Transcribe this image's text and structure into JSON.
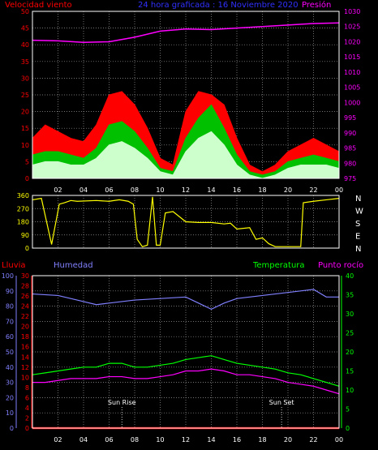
{
  "chart_data": [
    {
      "type": "line",
      "title": "24 hora graficada : 16 Noviembre 2020",
      "left_label": "Velocidad viento",
      "right_label": "Presión",
      "x_ticks": [
        "02",
        "04",
        "06",
        "08",
        "10",
        "12",
        "14",
        "16",
        "18",
        "20",
        "22",
        "00"
      ],
      "y_left_ticks": [
        "0",
        "5",
        "10",
        "15",
        "20",
        "25",
        "30",
        "35",
        "40",
        "45",
        "50"
      ],
      "y_left_range": [
        0,
        50
      ],
      "y_right_ticks": [
        "975",
        "980",
        "985",
        "990",
        "995",
        "1000",
        "1005",
        "1010",
        "1015",
        "1020",
        "1025",
        "1030"
      ],
      "y_right_range": [
        975,
        1030
      ],
      "grid": true,
      "colors": {
        "gust": "#ff0000",
        "wind_avg": "#00c000",
        "wind_speed": "#ccffcc",
        "pressure": "#ff00ff"
      },
      "series": [
        {
          "name": "gust",
          "x": [
            0,
            1,
            2,
            3,
            4,
            5,
            6,
            7,
            8,
            9,
            10,
            11,
            12,
            13,
            14,
            15,
            16,
            17,
            18,
            19,
            20,
            21,
            22,
            23,
            24
          ],
          "values": [
            12,
            16,
            14,
            12,
            11,
            16,
            25,
            26,
            22,
            15,
            6,
            4,
            20,
            26,
            25,
            22,
            12,
            4,
            2,
            4,
            8,
            10,
            12,
            10,
            8
          ]
        },
        {
          "name": "wind_avg",
          "x": [
            0,
            1,
            2,
            3,
            4,
            5,
            6,
            7,
            8,
            9,
            10,
            11,
            12,
            13,
            14,
            15,
            16,
            17,
            18,
            19,
            20,
            21,
            22,
            23,
            24
          ],
          "values": [
            7,
            8,
            8,
            7,
            6,
            9,
            16,
            17,
            14,
            9,
            3,
            2,
            12,
            18,
            22,
            15,
            7,
            2,
            1,
            2,
            5,
            6,
            7,
            6,
            5
          ]
        },
        {
          "name": "wind_speed",
          "x": [
            0,
            1,
            2,
            3,
            4,
            5,
            6,
            7,
            8,
            9,
            10,
            11,
            12,
            13,
            14,
            15,
            16,
            17,
            18,
            19,
            20,
            21,
            22,
            23,
            24
          ],
          "values": [
            4,
            5,
            5,
            4,
            4,
            6,
            10,
            11,
            9,
            6,
            2,
            1,
            8,
            12,
            14,
            10,
            4,
            1,
            0,
            1,
            3,
            4,
            4,
            4,
            3
          ]
        },
        {
          "name": "pressure",
          "axis": "right",
          "x": [
            0,
            2,
            4,
            6,
            8,
            10,
            12,
            14,
            16,
            18,
            20,
            22,
            24
          ],
          "values": [
            1020.5,
            1020.3,
            1019.8,
            1020.0,
            1021.5,
            1023.5,
            1024.2,
            1024.0,
            1024.5,
            1025.0,
            1025.5,
            1026.0,
            1026.2
          ]
        }
      ]
    },
    {
      "type": "line",
      "y_ticks": [
        "0",
        "90",
        "180",
        "270",
        "360"
      ],
      "y_range": [
        0,
        360
      ],
      "compass_labels": [
        "N",
        "W",
        "S",
        "E",
        "N"
      ],
      "grid": true,
      "colors": {
        "direction": "#ffff00"
      },
      "series": [
        {
          "name": "direction",
          "x": [
            0,
            0.7,
            1.5,
            2.1,
            2.5,
            3.0,
            3.5,
            5.0,
            6.0,
            6.8,
            7.5,
            7.9,
            8.2,
            8.6,
            9.0,
            9.4,
            9.7,
            10.0,
            10.4,
            11.0,
            12.0,
            13.0,
            14.0,
            15.0,
            15.5,
            16.0,
            17.0,
            17.5,
            18.0,
            18.5,
            19.0,
            20.0,
            21.0,
            21.2,
            22.0,
            23.0,
            24.0
          ],
          "values": [
            330,
            340,
            25,
            300,
            310,
            325,
            320,
            325,
            320,
            330,
            320,
            300,
            60,
            10,
            20,
            350,
            20,
            20,
            240,
            250,
            180,
            175,
            175,
            165,
            170,
            130,
            140,
            60,
            70,
            30,
            10,
            10,
            10,
            310,
            320,
            330,
            340
          ]
        }
      ]
    },
    {
      "type": "line",
      "left_labels": [
        "Lluvia",
        "Humedad"
      ],
      "right_labels": [
        "Temperatura",
        "Punto rocío"
      ],
      "x_ticks": [
        "02",
        "04",
        "06",
        "08",
        "10",
        "12",
        "14",
        "16",
        "18",
        "20",
        "22",
        "00"
      ],
      "y_humidity_ticks": [
        "0",
        "10",
        "20",
        "30",
        "40",
        "50",
        "60",
        "70",
        "80",
        "90",
        "100"
      ],
      "y_humidity_range": [
        0,
        100
      ],
      "y_rain_ticks": [
        "0",
        "2",
        "4",
        "6",
        "8",
        "10",
        "12",
        "14",
        "16",
        "18",
        "20",
        "22",
        "24",
        "26",
        "28",
        "30"
      ],
      "y_rain_range": [
        0,
        30
      ],
      "y_temp_ticks": [
        "0",
        "5",
        "10",
        "15",
        "20",
        "25",
        "30",
        "35",
        "40"
      ],
      "y_temp_range": [
        0,
        40
      ],
      "annotations": [
        {
          "text": "Sun Rise",
          "x": 7.0
        },
        {
          "text": "Sun Set",
          "x": 19.5
        }
      ],
      "grid": true,
      "colors": {
        "rain": "#ff0000",
        "humidity": "#8080ff",
        "temperature": "#00ff00",
        "dewpoint": "#ff00ff"
      },
      "series": [
        {
          "name": "rain",
          "x": [
            0,
            24
          ],
          "values": [
            0,
            0
          ]
        },
        {
          "name": "humidity",
          "x": [
            0,
            2,
            4,
            5,
            6,
            8,
            10,
            12,
            13,
            14,
            15,
            16,
            18,
            20,
            22,
            23,
            24
          ],
          "values": [
            88,
            87,
            83,
            81,
            82,
            84,
            85,
            86,
            82,
            78,
            82,
            85,
            87,
            89,
            91,
            86,
            86
          ]
        },
        {
          "name": "temperature",
          "x": [
            0,
            1,
            2,
            3,
            4,
            5,
            6,
            7,
            8,
            9,
            10,
            11,
            12,
            13,
            14,
            15,
            16,
            17,
            18,
            19,
            20,
            21,
            22,
            23,
            24
          ],
          "values": [
            14,
            14.5,
            15,
            15.5,
            16,
            16,
            17,
            17,
            16,
            16,
            16.5,
            17,
            18,
            18.5,
            19,
            18,
            17,
            16.5,
            16,
            15.5,
            14.5,
            14,
            13,
            12,
            11
          ]
        },
        {
          "name": "dewpoint",
          "x": [
            0,
            1,
            2,
            3,
            4,
            5,
            6,
            7,
            8,
            9,
            10,
            11,
            12,
            13,
            14,
            15,
            16,
            17,
            18,
            19,
            20,
            21,
            22,
            23,
            24
          ],
          "values": [
            12,
            12,
            12.5,
            13,
            13,
            13,
            13.5,
            13.5,
            13,
            13,
            13.5,
            14,
            15,
            15,
            15.5,
            15,
            14,
            14,
            13.5,
            13,
            12,
            11.5,
            11,
            10,
            9
          ]
        }
      ]
    }
  ]
}
